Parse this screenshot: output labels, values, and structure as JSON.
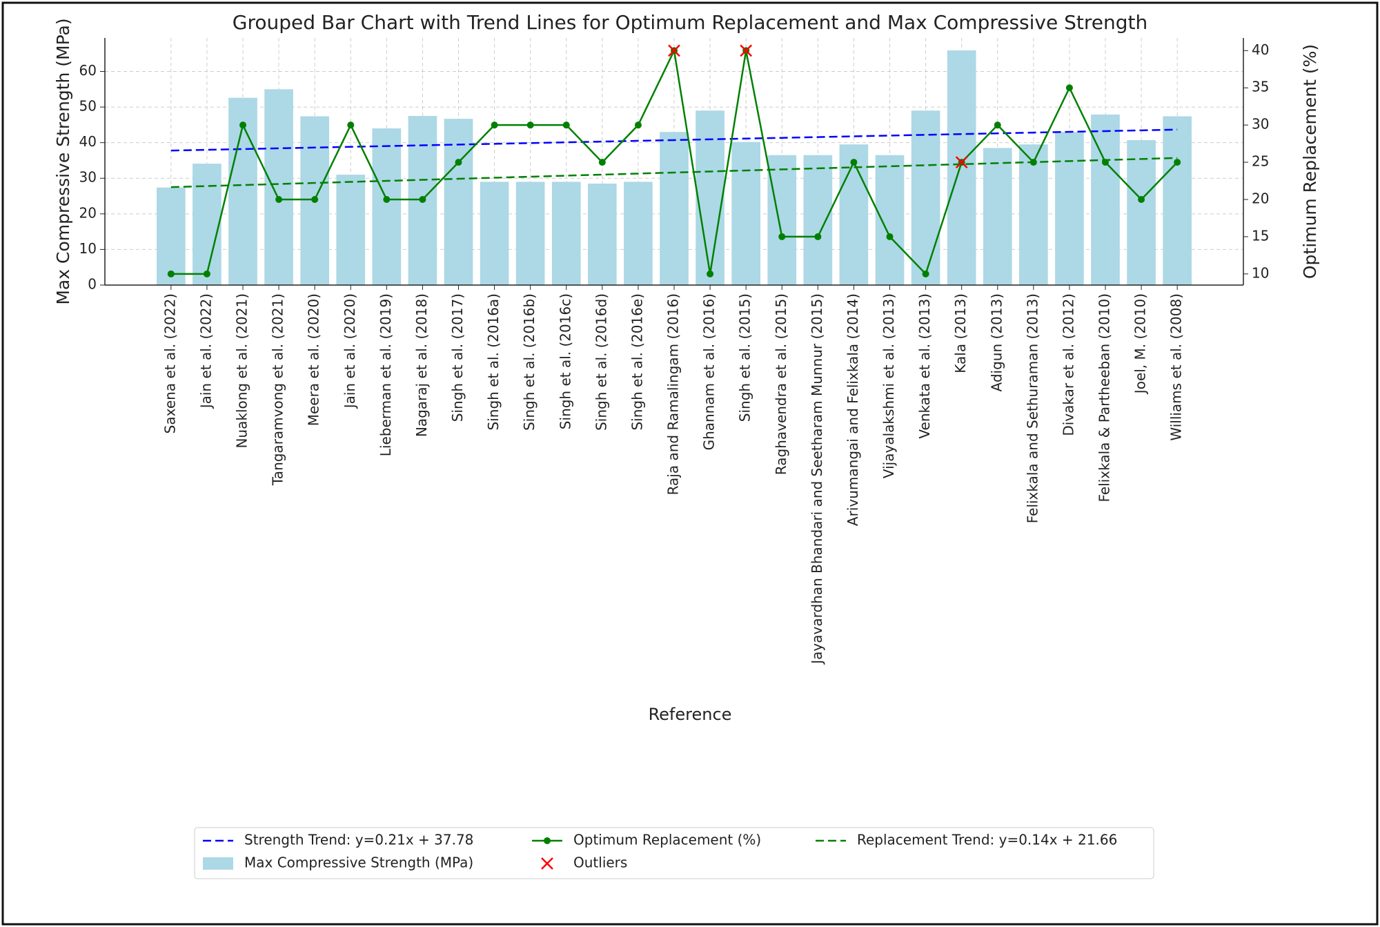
{
  "chart_data": {
    "type": "bar",
    "title": "Grouped Bar Chart with Trend Lines for Optimum Replacement and Max Compressive Strength",
    "xlabel": "Reference",
    "ylabel": "Max Compressive Strength (MPa)",
    "y2label": "Optimum Replacement (%)",
    "categories": [
      "Saxena et al. (2022)",
      "Jain et al. (2022)",
      "Nuaklong et al. (2021)",
      "Tangaramvong et al. (2021)",
      "Meera et al. (2020)",
      "Jain et al. (2020)",
      "Lieberman et al. (2019)",
      "Nagaraj et al. (2018)",
      "Singh et al. (2017)",
      "Singh et al. (2016a)",
      "Singh et al. (2016b)",
      "Singh et al. (2016c)",
      "Singh et al. (2016d)",
      "Singh et al. (2016e)",
      "Raja and Ramalingam (2016)",
      "Ghannam et al. (2016)",
      "Singh et al. (2015)",
      "Raghavendra et al. (2015)",
      "Jayavardhan Bhandari and Seetharam Munnur (2015)",
      "Arivumangai and Felixkala (2014)",
      "Vijayalakshmi et al. (2013)",
      "Venkata et al. (2013)",
      "Kala (2013)",
      "Adigun (2013)",
      "Felixkala and Sethuraman (2013)",
      "Divakar et al. (2012)",
      "Felixkala & Partheeban (2010)",
      "Joel, M. (2010)",
      "Williams et al. (2008)"
    ],
    "series": [
      {
        "name": "Strength Trend: y=0.21x + 37.78",
        "type": "line",
        "dash": true,
        "color": "#0000ff",
        "axis": "y",
        "values": [
          37.78,
          37.99,
          38.2,
          38.41,
          38.62,
          38.83,
          39.04,
          39.25,
          39.46,
          39.67,
          39.88,
          40.09,
          40.3,
          40.51,
          40.72,
          40.93,
          41.14,
          41.35,
          41.56,
          41.77,
          41.98,
          42.19,
          42.4,
          42.61,
          42.82,
          43.03,
          43.24,
          43.45,
          43.66
        ]
      },
      {
        "name": "Max Compressive Strength (MPa)",
        "type": "bar",
        "color": "#add8e6",
        "axis": "y",
        "values": [
          27.4,
          34.1,
          52.6,
          55,
          47.4,
          31,
          44,
          47.5,
          46.7,
          29,
          29,
          29,
          28.5,
          29,
          43,
          49,
          40.2,
          36.5,
          36.5,
          39.5,
          36.5,
          49,
          65.9,
          38.5,
          39.5,
          43,
          47.9,
          40.7,
          47.4
        ]
      },
      {
        "name": "Optimum Replacement (%)",
        "type": "line",
        "dash": false,
        "color": "#008000",
        "axis": "y2",
        "values": [
          10,
          10,
          30,
          20,
          20,
          30,
          20,
          20,
          25,
          30,
          30,
          30,
          25,
          30,
          40,
          10,
          40,
          15,
          15,
          25,
          15,
          10,
          25,
          30,
          25,
          35,
          25,
          20,
          25
        ]
      },
      {
        "name": "Outliers",
        "type": "scatter",
        "color": "#ff0000",
        "axis": "y2",
        "values": [
          null,
          null,
          null,
          null,
          null,
          null,
          null,
          null,
          null,
          null,
          null,
          null,
          null,
          null,
          40,
          null,
          40,
          null,
          null,
          null,
          null,
          null,
          25,
          null,
          null,
          null,
          null,
          null,
          null
        ]
      },
      {
        "name": "Replacement Trend: y=0.14x + 21.66",
        "type": "line",
        "dash": true,
        "color": "#008000",
        "axis": "y2",
        "values": [
          21.66,
          21.8,
          21.94,
          22.08,
          22.22,
          22.36,
          22.5,
          22.64,
          22.78,
          22.92,
          23.06,
          23.2,
          23.34,
          23.48,
          23.62,
          23.76,
          23.9,
          24.04,
          24.18,
          24.32,
          24.46,
          24.6,
          24.74,
          24.88,
          25.02,
          25.16,
          25.3,
          25.44,
          25.58
        ]
      }
    ],
    "ylim": [
      0,
      69.4
    ],
    "yticks": [
      0,
      10,
      20,
      30,
      40,
      50,
      60
    ],
    "ycolor": "#0000ff",
    "y2lim": [
      8.5,
      41.7
    ],
    "y2ticks": [
      10,
      15,
      20,
      25,
      30,
      35,
      40
    ],
    "y2color": "#008000",
    "grid": true,
    "legend": "lower center"
  }
}
